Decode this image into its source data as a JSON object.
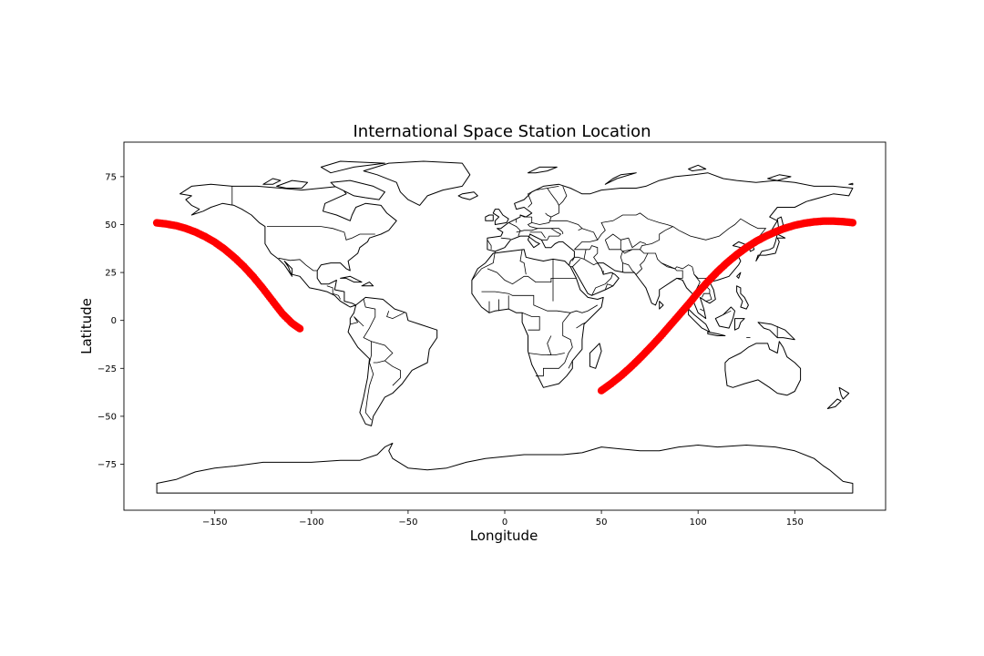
{
  "chart_data": {
    "type": "scatter",
    "title": "International Space Station Location",
    "xlabel": "Longitude",
    "ylabel": "Latitude",
    "xlim": [
      -197,
      197
    ],
    "ylim": [
      -99,
      93
    ],
    "xticks": [
      -150,
      -100,
      -50,
      0,
      50,
      100,
      150
    ],
    "yticks": [
      75,
      50,
      25,
      0,
      -25,
      -50,
      -75
    ],
    "grid": false,
    "series_color": "#ff0000",
    "series": [
      {
        "x": [
          -180,
          -175,
          -170,
          -165,
          -160,
          -155,
          -150,
          -145,
          -140,
          -135,
          -130,
          -125,
          -120,
          -115,
          -110,
          -106
        ],
        "y": [
          50.9,
          50.3,
          49.4,
          48.0,
          46.1,
          43.7,
          40.8,
          37.2,
          33.0,
          28.2,
          22.7,
          16.6,
          10.0,
          3.5,
          -1.5,
          -4.3
        ]
      },
      {
        "x": [
          50,
          55,
          60,
          65,
          70,
          75,
          80,
          85,
          90,
          95,
          100,
          105,
          110,
          115,
          120,
          125,
          130,
          135,
          140,
          145,
          150,
          155,
          160,
          165,
          170,
          175,
          180
        ],
        "y": [
          -36.6,
          -33.0,
          -29.0,
          -24.5,
          -19.6,
          -14.4,
          -9.0,
          -3.2,
          2.6,
          8.4,
          14.6,
          20.2,
          25.4,
          30.1,
          34.3,
          38.0,
          41.2,
          43.9,
          46.2,
          48.1,
          49.6,
          50.7,
          51.4,
          51.8,
          51.8,
          51.5,
          51.0
        ]
      }
    ],
    "basemap": "world country outlines"
  }
}
